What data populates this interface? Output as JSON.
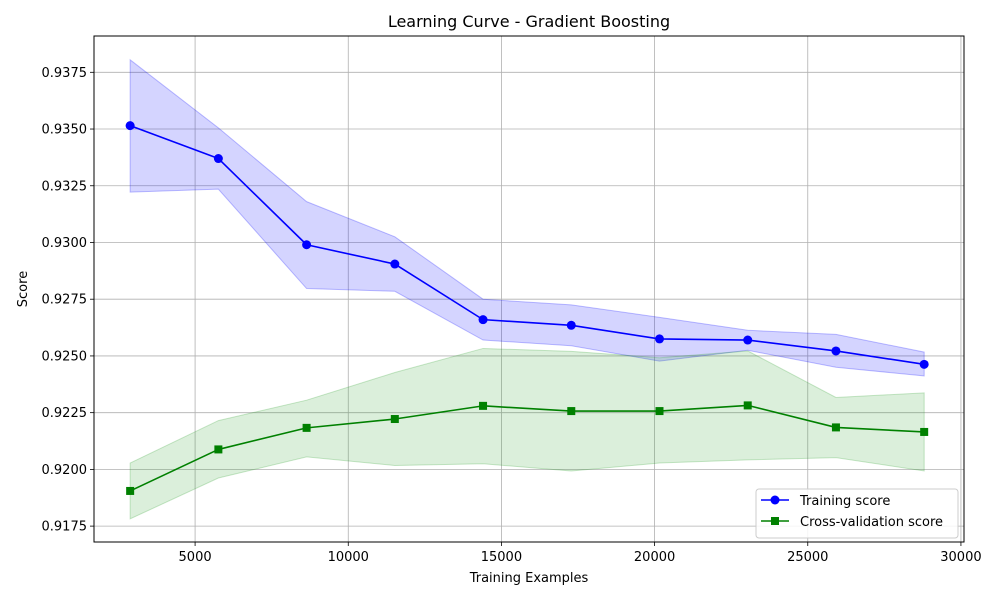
{
  "chart_data": {
    "type": "line",
    "title": "Learning Curve - Gradient Boosting",
    "xlabel": "Training Examples",
    "ylabel": "Score",
    "xlim": [
      1700,
      30100
    ],
    "ylim": [
      0.9168,
      0.9391
    ],
    "grid": true,
    "legend_position": "bottom-right",
    "x_ticks": [
      5000,
      10000,
      15000,
      20000,
      25000,
      30000
    ],
    "x_tick_labels": [
      "5000",
      "10000",
      "15000",
      "20000",
      "25000",
      "30000"
    ],
    "y_ticks": [
      0.9175,
      0.92,
      0.9225,
      0.925,
      0.9275,
      0.93,
      0.9325,
      0.935,
      0.9375
    ],
    "y_tick_labels": [
      "0.9175",
      "0.9200",
      "0.9225",
      "0.9250",
      "0.9275",
      "0.9300",
      "0.9325",
      "0.9350",
      "0.9375"
    ],
    "x": [
      2880,
      5760,
      8640,
      11520,
      14400,
      17280,
      20160,
      23040,
      25920,
      28800
    ],
    "series": [
      {
        "name": "Training score",
        "color": "#0000ff",
        "band_color": "#0000ff",
        "marker": "circle",
        "values": [
          0.93515,
          0.9337,
          0.9299,
          0.92905,
          0.9266,
          0.92635,
          0.92575,
          0.9257,
          0.92522,
          0.92463
        ],
        "band_upper": [
          0.93805,
          0.93505,
          0.9318,
          0.93025,
          0.9275,
          0.92725,
          0.9267,
          0.92613,
          0.92595,
          0.92517
        ],
        "band_lower": [
          0.93222,
          0.93235,
          0.92797,
          0.92785,
          0.9257,
          0.92545,
          0.92477,
          0.92525,
          0.9245,
          0.92412
        ]
      },
      {
        "name": "Cross-validation score",
        "color": "#008000",
        "band_color": "#2ca02c",
        "marker": "square",
        "values": [
          0.91905,
          0.92088,
          0.92183,
          0.92222,
          0.9228,
          0.92257,
          0.92257,
          0.92282,
          0.92185,
          0.92165
        ],
        "band_upper": [
          0.92028,
          0.92215,
          0.92305,
          0.92427,
          0.92533,
          0.9252,
          0.92492,
          0.92522,
          0.92317,
          0.92337
        ],
        "band_lower": [
          0.91782,
          0.91962,
          0.92055,
          0.92017,
          0.92025,
          0.91993,
          0.92028,
          0.92042,
          0.92052,
          0.91993
        ]
      }
    ]
  }
}
